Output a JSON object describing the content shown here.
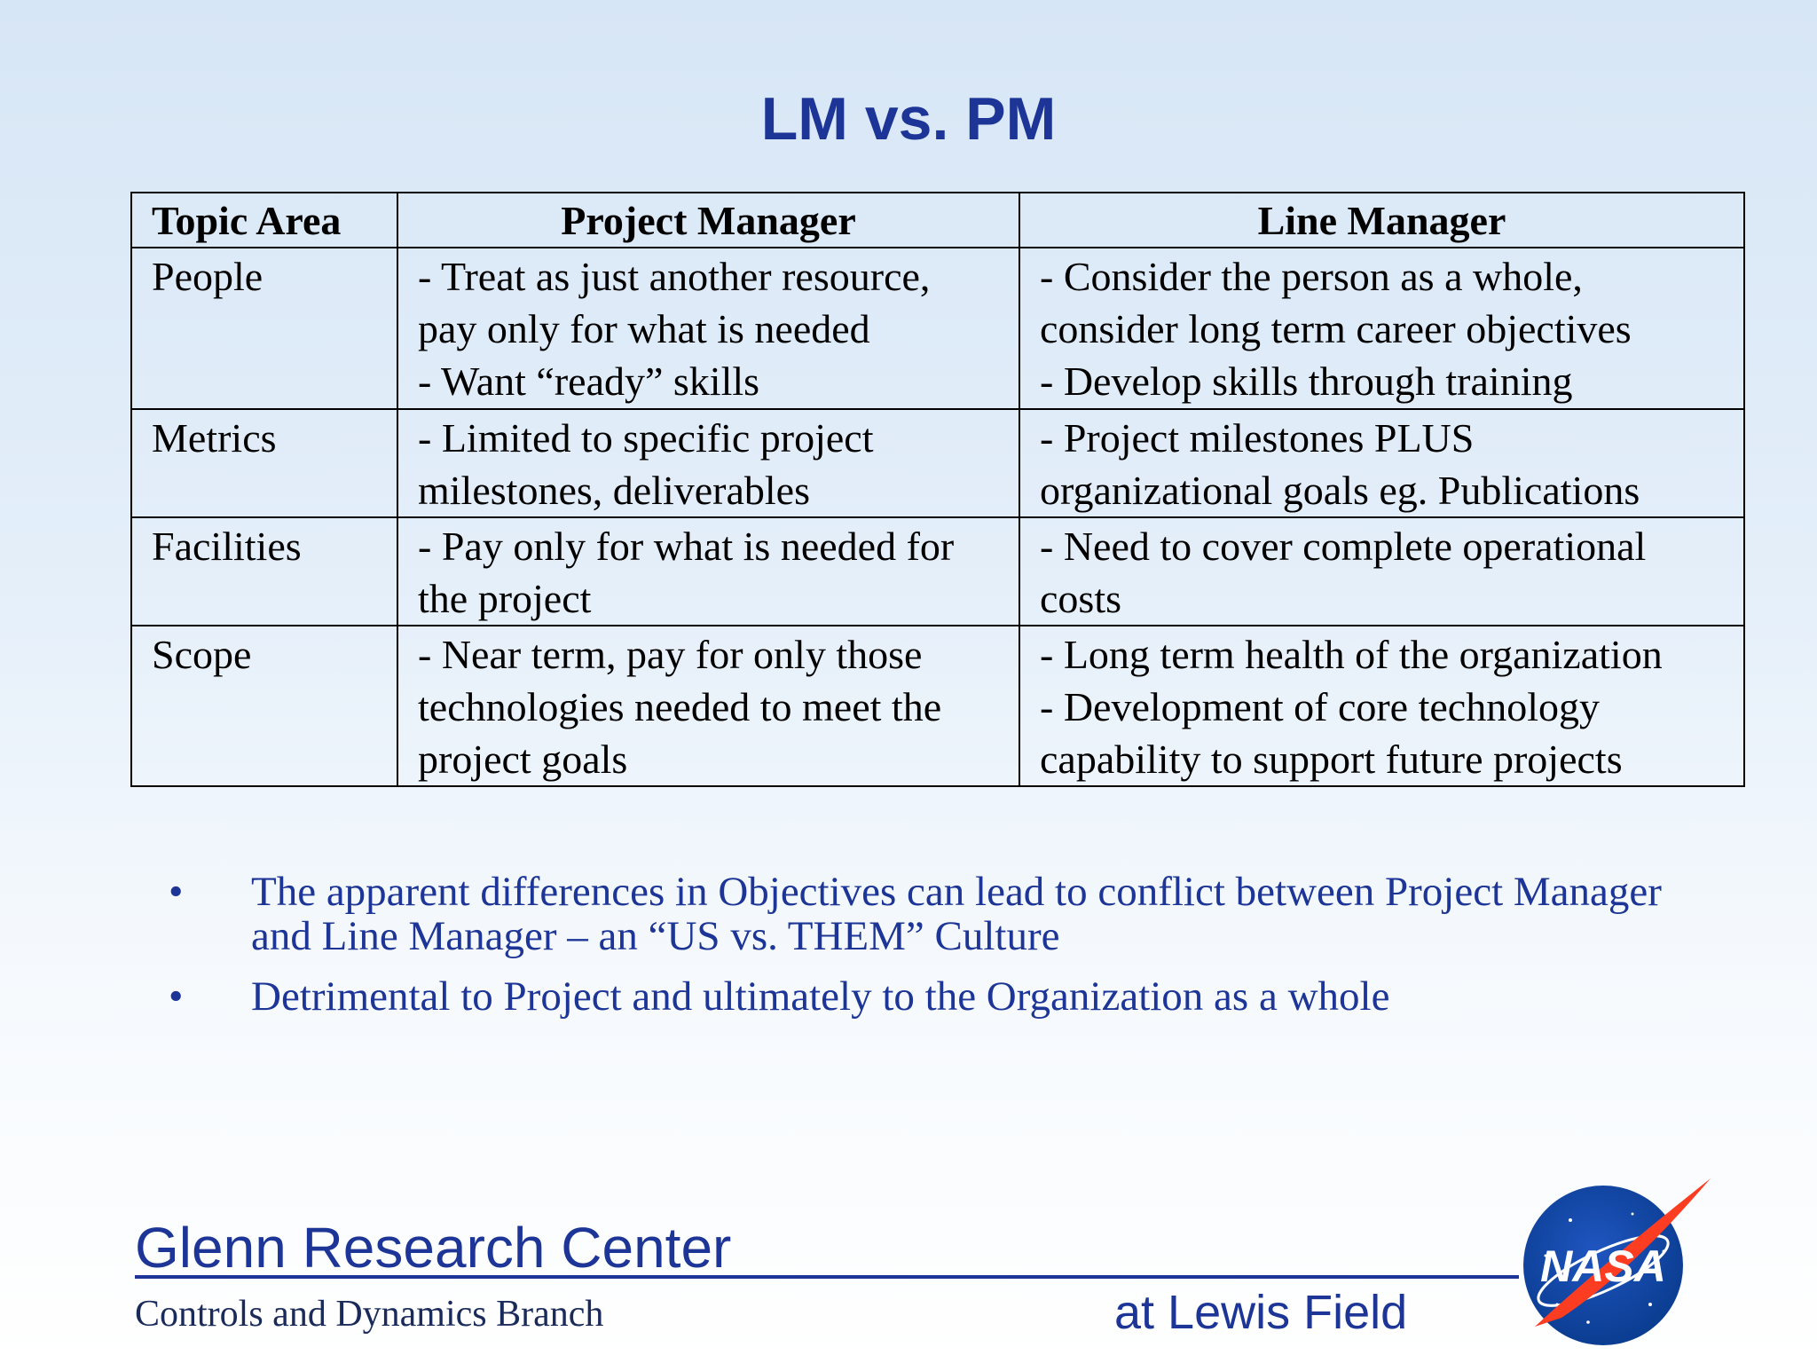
{
  "slide": {
    "title": "LM vs. PM"
  },
  "table": {
    "headers": [
      "Topic Area",
      "Project Manager",
      "Line Manager"
    ],
    "rows": [
      {
        "topic": "People",
        "pm": [
          "- Treat as just another resource,",
          "pay only for what is needed",
          "- Want “ready” skills"
        ],
        "lm": [
          "- Consider the person as a whole,",
          "consider long term career objectives",
          "- Develop skills through training"
        ]
      },
      {
        "topic": "Metrics",
        "pm": [
          "- Limited to specific project",
          "milestones, deliverables"
        ],
        "lm": [
          "- Project milestones PLUS",
          "organizational goals eg. Publications"
        ]
      },
      {
        "topic": "Facilities",
        "pm": [
          "- Pay only for what is needed for",
          "the project"
        ],
        "lm": [
          "- Need to cover complete operational",
          "costs"
        ]
      },
      {
        "topic": "Scope",
        "pm": [
          "- Near term, pay for only those",
          "technologies needed to meet the",
          "project goals"
        ],
        "lm": [
          "- Long term health of the organization",
          "- Development of core technology",
          "capability to support future projects"
        ]
      }
    ]
  },
  "bullets": {
    "marker": "•",
    "items": [
      "The apparent differences in Objectives can lead to conflict between Project Manager and Line Manager – an “US vs. THEM” Culture",
      "Detrimental to Project and ultimately to the Organization as a whole"
    ]
  },
  "footer": {
    "center": "Glenn Research Center",
    "branch": "Controls and Dynamics Branch",
    "location": "at Lewis Field",
    "logo_text": "NASA",
    "logo_icon": "nasa-meatball-logo"
  },
  "colors": {
    "title": "#1c3596",
    "bullet_text": "#1c3596",
    "logo_blue": "#0b3d91",
    "logo_red": "#fc3d21"
  }
}
